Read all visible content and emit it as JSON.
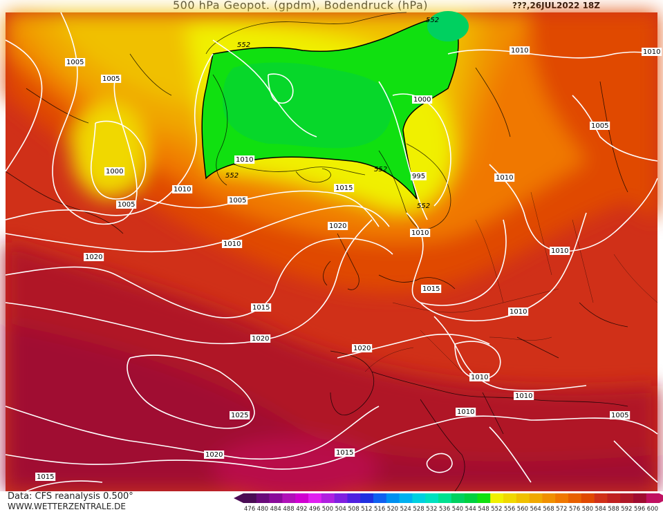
{
  "header": {
    "title": "500 hPa Geopot. (gpdm), Bodendruck (hPa)",
    "datestamp": "???,26JUL2022 18Z"
  },
  "footer": {
    "credit": "Data: CFS reanalysis 0.500°",
    "website": "WWW.WETTERZENTRALE.DE"
  },
  "legend": {
    "values": [
      "476",
      "480",
      "484",
      "488",
      "492",
      "496",
      "500",
      "504",
      "508",
      "512",
      "516",
      "520",
      "524",
      "528",
      "532",
      "536",
      "540",
      "544",
      "548",
      "552",
      "556",
      "560",
      "564",
      "568",
      "572",
      "576",
      "580",
      "584",
      "588",
      "592",
      "596",
      "600"
    ],
    "colors": [
      "#4b0c55",
      "#6a0a7a",
      "#8a0a9a",
      "#b010b8",
      "#d000d0",
      "#e020f0",
      "#b020e0",
      "#8020e0",
      "#5020e0",
      "#2030e0",
      "#1060f0",
      "#0090f0",
      "#00b0f0",
      "#00d0e0",
      "#00e0c0",
      "#00e090",
      "#00d060",
      "#00d040",
      "#10e010",
      "#f0f000",
      "#f0d800",
      "#f0c000",
      "#f0a800",
      "#f09000",
      "#f07800",
      "#e86000",
      "#e04800",
      "#d03018",
      "#c02020",
      "#b01828",
      "#a00c30",
      "#c01060"
    ]
  },
  "map": {
    "isobars": [
      "1005",
      "1005",
      "1000",
      "1005",
      "1010",
      "1005",
      "1010",
      "1010",
      "1015",
      "1000",
      "995",
      "1010",
      "1010",
      "1005",
      "1010",
      "1010",
      "1020",
      "1020",
      "1015",
      "1020",
      "1020",
      "1015",
      "1010",
      "1010",
      "1010",
      "1010",
      "1025",
      "1020",
      "1015",
      "1015",
      "1010",
      "1005",
      "1010"
    ],
    "geopotential_labels": [
      "552",
      "552",
      "552",
      "552",
      "552"
    ]
  }
}
